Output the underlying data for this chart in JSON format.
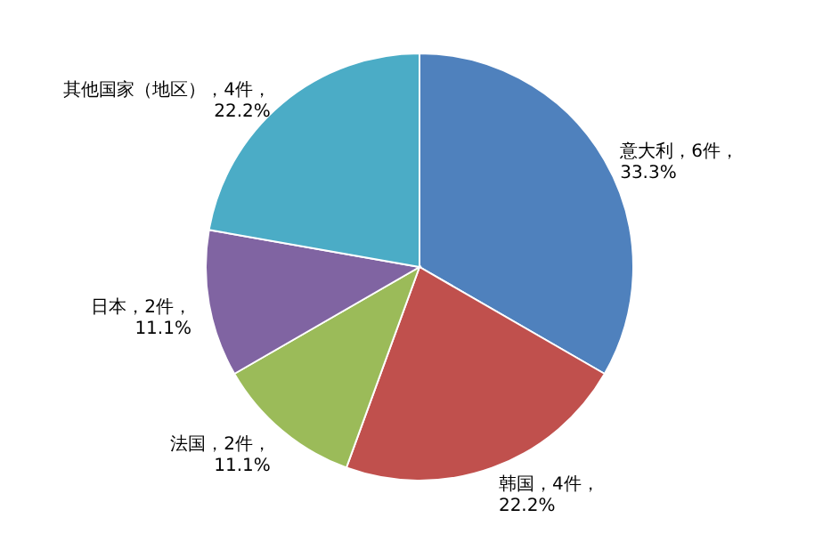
{
  "chart_data": {
    "type": "pie",
    "categories": [
      "意大利",
      "韩国",
      "法国",
      "日本",
      "其他国家（地区）"
    ],
    "values": [
      6,
      4,
      2,
      2,
      4
    ],
    "colors": [
      "#4f81bd",
      "#c0504d",
      "#9bbb59",
      "#8064a2",
      "#4bacc6"
    ],
    "value_labels": [
      "，6件，\n33.3%",
      "，4件，\n22.2%",
      "，2件，\n11.1%",
      "，2件，\n11.1%",
      "，4件，\n22.2%"
    ],
    "legend": false
  }
}
